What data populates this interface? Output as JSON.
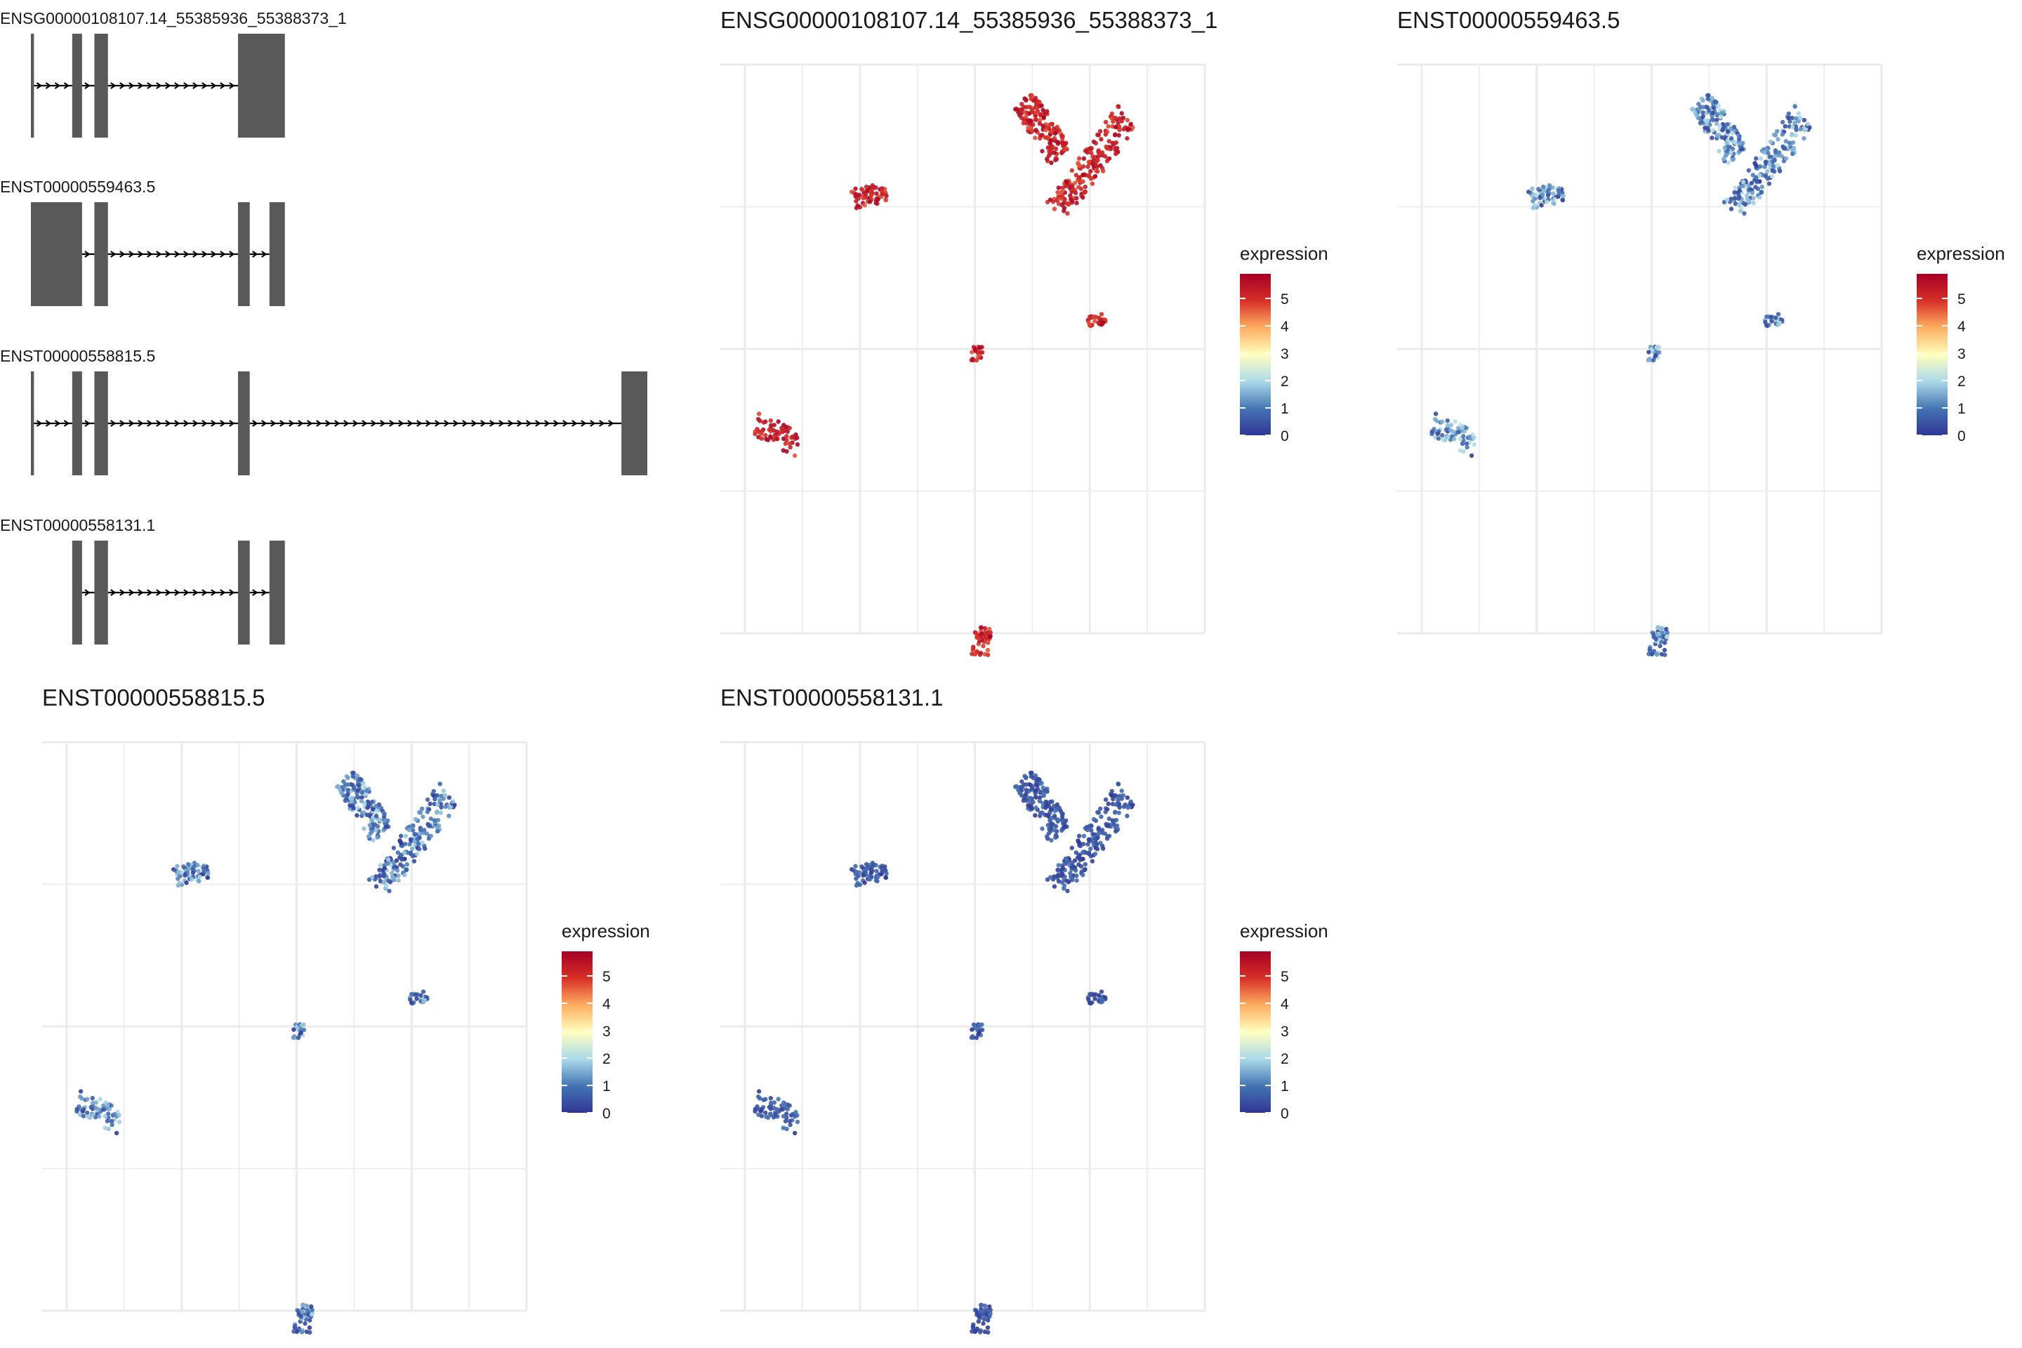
{
  "gene_structure": {
    "tracks": [
      {
        "label": "ENSG00000108107.14_55385936_55388373_1",
        "exons": [
          [
            0.0,
            0.005
          ],
          [
            0.067,
            0.083
          ],
          [
            0.103,
            0.125
          ],
          [
            0.336,
            0.412
          ]
        ]
      },
      {
        "label": "ENST00000559463.5",
        "exons": [
          [
            0.0,
            0.083
          ],
          [
            0.103,
            0.125
          ],
          [
            0.336,
            0.355
          ],
          [
            0.387,
            0.412
          ]
        ]
      },
      {
        "label": "ENST00000558815.5",
        "exons": [
          [
            0.0,
            0.005
          ],
          [
            0.067,
            0.083
          ],
          [
            0.103,
            0.125
          ],
          [
            0.336,
            0.355
          ],
          [
            0.958,
            1.0
          ]
        ]
      },
      {
        "label": "ENST00000558131.1",
        "exons": [
          [
            0.067,
            0.083
          ],
          [
            0.103,
            0.125
          ],
          [
            0.336,
            0.355
          ],
          [
            0.387,
            0.412
          ]
        ]
      }
    ],
    "exon_color": "#595959",
    "intron_color": "#000000"
  },
  "colors": {
    "palette": [
      "#313695",
      "#4575b4",
      "#abd9e9",
      "#ffffbf",
      "#fdae61",
      "#d73027",
      "#a50026"
    ],
    "grid": "#ebebeb"
  },
  "chart_data": [
    {
      "type": "scatter",
      "title": "ENSG00000108107.14_55385936_55388373_1",
      "legend_title": "expression",
      "legend_ticks": [
        "5",
        "4",
        "3",
        "2",
        "1",
        "0"
      ],
      "level_range": [
        4.6,
        5.9
      ],
      "clim": [
        0,
        5.9
      ]
    },
    {
      "type": "scatter",
      "title": "ENST00000559463.5",
      "legend_title": "expression",
      "legend_ticks": [
        "5",
        "4",
        "3",
        "2",
        "1",
        "0"
      ],
      "level_range": [
        0.1,
        2.2
      ],
      "clim": [
        0,
        5.9
      ]
    },
    {
      "type": "scatter",
      "title": "ENST00000558815.5",
      "legend_title": "expression",
      "legend_ticks": [
        "5",
        "4",
        "3",
        "2",
        "1",
        "0"
      ],
      "level_range": [
        0.0,
        2.0
      ],
      "clim": [
        0,
        5.9
      ]
    },
    {
      "type": "scatter",
      "title": "ENST00000558131.1",
      "legend_title": "expression",
      "legend_ticks": [
        "5",
        "4",
        "3",
        "2",
        "1",
        "0"
      ],
      "level_range": [
        0.0,
        1.0
      ],
      "clim": [
        0,
        5.9
      ]
    }
  ]
}
